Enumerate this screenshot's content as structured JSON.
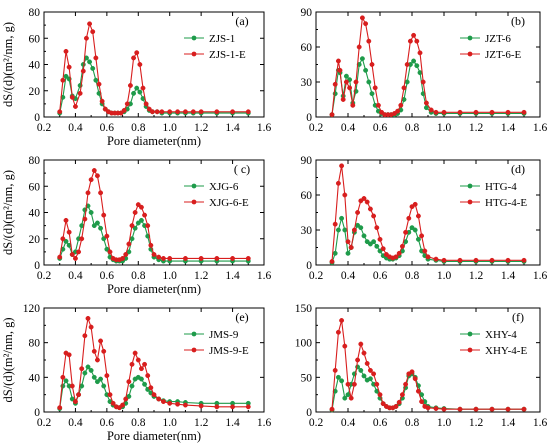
{
  "colors": {
    "base": "#1e9b4a",
    "extracted": "#d81e1e",
    "axis": "#000000"
  },
  "chart_data": [
    {
      "type": "line",
      "panel": "(a)",
      "xlabel": "Pore diameter(nm)",
      "ylabel": "dS/(d)(m²/nm, g)",
      "xlim": [
        0.2,
        1.6
      ],
      "ylim": [
        0,
        80
      ],
      "yticks": [
        0,
        20,
        40,
        60,
        80
      ],
      "xticks": [
        0.2,
        0.4,
        0.6,
        0.8,
        1.0,
        1.2,
        1.4,
        1.6
      ],
      "legend_position": "top-right",
      "series": [
        {
          "name": "ZJS-1",
          "x": [
            0.3,
            0.32,
            0.34,
            0.36,
            0.38,
            0.4,
            0.43,
            0.45,
            0.47,
            0.49,
            0.51,
            0.53,
            0.55,
            0.57,
            0.59,
            0.61,
            0.63,
            0.65,
            0.67,
            0.69,
            0.71,
            0.73,
            0.75,
            0.77,
            0.79,
            0.81,
            0.83,
            0.85,
            0.87,
            0.89,
            0.92,
            0.95,
            1.0,
            1.05,
            1.1,
            1.15,
            1.2,
            1.3,
            1.4,
            1.5
          ],
          "y": [
            3,
            15,
            31,
            29,
            16,
            14,
            24,
            40,
            45,
            42,
            37,
            28,
            18,
            10,
            6,
            4,
            3,
            3,
            3,
            3,
            4,
            6,
            10,
            18,
            22,
            19,
            14,
            8,
            5,
            4,
            4,
            3,
            3,
            3,
            3,
            3,
            3,
            3,
            3,
            3
          ]
        },
        {
          "name": "ZJS-1-E",
          "x": [
            0.3,
            0.32,
            0.34,
            0.36,
            0.38,
            0.4,
            0.43,
            0.45,
            0.47,
            0.49,
            0.51,
            0.53,
            0.55,
            0.57,
            0.59,
            0.61,
            0.63,
            0.65,
            0.67,
            0.69,
            0.71,
            0.73,
            0.75,
            0.77,
            0.79,
            0.81,
            0.83,
            0.85,
            0.87,
            0.89,
            0.92,
            0.95,
            1.0,
            1.05,
            1.1,
            1.15,
            1.2,
            1.3,
            1.4,
            1.5
          ],
          "y": [
            4,
            28,
            50,
            38,
            15,
            8,
            18,
            35,
            60,
            71,
            65,
            45,
            25,
            12,
            6,
            4,
            3,
            3,
            3,
            3,
            5,
            10,
            24,
            45,
            49,
            40,
            22,
            10,
            6,
            4,
            4,
            4,
            4,
            4,
            4,
            4,
            4,
            4,
            4,
            4
          ]
        }
      ]
    },
    {
      "type": "line",
      "panel": "(b)",
      "xlabel": "",
      "ylabel": "",
      "xlim": [
        0.2,
        1.6
      ],
      "ylim": [
        0,
        90
      ],
      "yticks": [
        0,
        30,
        60,
        90
      ],
      "xticks": [
        0.2,
        0.4,
        0.6,
        0.8,
        1.0,
        1.2,
        1.4,
        1.6
      ],
      "legend_position": "top-right",
      "series": [
        {
          "name": "JZT-6",
          "x": [
            0.3,
            0.32,
            0.34,
            0.35,
            0.37,
            0.39,
            0.41,
            0.43,
            0.45,
            0.47,
            0.49,
            0.51,
            0.53,
            0.55,
            0.57,
            0.59,
            0.61,
            0.63,
            0.65,
            0.67,
            0.69,
            0.71,
            0.73,
            0.75,
            0.77,
            0.79,
            0.81,
            0.83,
            0.85,
            0.87,
            0.89,
            0.92,
            0.95,
            1.0,
            1.1,
            1.2,
            1.3,
            1.4,
            1.5
          ],
          "y": [
            2,
            20,
            40,
            38,
            18,
            35,
            32,
            12,
            22,
            45,
            50,
            40,
            30,
            20,
            10,
            5,
            3,
            2,
            2,
            2,
            2,
            3,
            6,
            15,
            30,
            45,
            48,
            44,
            38,
            20,
            8,
            4,
            3,
            3,
            3,
            3,
            3,
            3,
            3
          ]
        },
        {
          "name": "JZT-6-E",
          "x": [
            0.3,
            0.32,
            0.34,
            0.35,
            0.37,
            0.39,
            0.41,
            0.43,
            0.45,
            0.47,
            0.49,
            0.51,
            0.53,
            0.55,
            0.57,
            0.59,
            0.61,
            0.63,
            0.65,
            0.67,
            0.69,
            0.71,
            0.73,
            0.75,
            0.77,
            0.79,
            0.81,
            0.83,
            0.85,
            0.87,
            0.89,
            0.92,
            0.95,
            1.0,
            1.1,
            1.2,
            1.3,
            1.4,
            1.5
          ],
          "y": [
            2,
            28,
            48,
            40,
            15,
            30,
            25,
            10,
            30,
            60,
            85,
            80,
            65,
            45,
            25,
            10,
            4,
            2,
            2,
            2,
            3,
            5,
            10,
            25,
            45,
            65,
            70,
            65,
            55,
            30,
            12,
            6,
            4,
            4,
            4,
            4,
            4,
            4,
            4
          ]
        }
      ]
    },
    {
      "type": "line",
      "panel": "( c)",
      "xlabel": "Pore diameter(nm)",
      "ylabel": "dS/(d)(m²/nm, g)",
      "xlim": [
        0.2,
        1.6
      ],
      "ylim": [
        0,
        80
      ],
      "yticks": [
        0,
        20,
        40,
        60,
        80
      ],
      "xticks": [
        0.2,
        0.4,
        0.6,
        0.8,
        1.0,
        1.2,
        1.4,
        1.6
      ],
      "legend_position": "top-right",
      "series": [
        {
          "name": "XJG-6",
          "x": [
            0.3,
            0.32,
            0.34,
            0.36,
            0.38,
            0.4,
            0.42,
            0.44,
            0.46,
            0.48,
            0.5,
            0.52,
            0.54,
            0.56,
            0.58,
            0.6,
            0.62,
            0.64,
            0.66,
            0.68,
            0.7,
            0.72,
            0.74,
            0.76,
            0.78,
            0.8,
            0.82,
            0.84,
            0.86,
            0.88,
            0.9,
            0.93,
            0.96,
            1.0,
            1.1,
            1.2,
            1.3,
            1.4,
            1.5
          ],
          "y": [
            5,
            12,
            18,
            15,
            8,
            10,
            20,
            30,
            42,
            45,
            40,
            30,
            32,
            28,
            20,
            12,
            6,
            4,
            3,
            3,
            3,
            5,
            10,
            20,
            28,
            32,
            34,
            30,
            22,
            12,
            6,
            4,
            3,
            3,
            3,
            3,
            3,
            3,
            3
          ]
        },
        {
          "name": "XJG-6-E",
          "x": [
            0.3,
            0.32,
            0.34,
            0.36,
            0.38,
            0.4,
            0.42,
            0.44,
            0.46,
            0.48,
            0.5,
            0.52,
            0.54,
            0.56,
            0.58,
            0.6,
            0.62,
            0.64,
            0.66,
            0.68,
            0.7,
            0.72,
            0.74,
            0.76,
            0.78,
            0.8,
            0.82,
            0.84,
            0.86,
            0.88,
            0.9,
            0.93,
            0.96,
            1.0,
            1.1,
            1.2,
            1.3,
            1.4,
            1.5
          ],
          "y": [
            6,
            20,
            34,
            25,
            8,
            5,
            10,
            20,
            35,
            55,
            65,
            72,
            68,
            55,
            38,
            22,
            10,
            5,
            4,
            4,
            5,
            8,
            16,
            30,
            40,
            46,
            44,
            38,
            30,
            15,
            8,
            6,
            5,
            5,
            5,
            5,
            5,
            5,
            5
          ]
        }
      ]
    },
    {
      "type": "line",
      "panel": "(d)",
      "xlabel": "",
      "ylabel": "",
      "xlim": [
        0.2,
        1.6
      ],
      "ylim": [
        0,
        90
      ],
      "yticks": [
        0,
        30,
        60,
        90
      ],
      "xticks": [
        0.2,
        0.4,
        0.6,
        0.8,
        1.0,
        1.2,
        1.4,
        1.6
      ],
      "legend_position": "top-right",
      "series": [
        {
          "name": "HTG-4",
          "x": [
            0.3,
            0.32,
            0.34,
            0.36,
            0.38,
            0.4,
            0.42,
            0.44,
            0.46,
            0.48,
            0.5,
            0.52,
            0.54,
            0.56,
            0.58,
            0.6,
            0.62,
            0.64,
            0.66,
            0.68,
            0.7,
            0.72,
            0.74,
            0.76,
            0.78,
            0.8,
            0.82,
            0.84,
            0.86,
            0.88,
            0.9,
            0.95,
            1.0,
            1.1,
            1.2,
            1.3,
            1.4,
            1.5
          ],
          "y": [
            2,
            10,
            30,
            40,
            30,
            10,
            15,
            28,
            34,
            32,
            25,
            20,
            18,
            20,
            16,
            12,
            8,
            6,
            5,
            5,
            6,
            8,
            12,
            20,
            28,
            32,
            30,
            22,
            12,
            8,
            5,
            4,
            3,
            3,
            3,
            3,
            3,
            3
          ]
        },
        {
          "name": "HTG-4-E",
          "x": [
            0.3,
            0.32,
            0.34,
            0.36,
            0.38,
            0.4,
            0.42,
            0.44,
            0.46,
            0.48,
            0.5,
            0.52,
            0.54,
            0.56,
            0.58,
            0.6,
            0.62,
            0.64,
            0.66,
            0.68,
            0.7,
            0.72,
            0.74,
            0.76,
            0.78,
            0.8,
            0.82,
            0.84,
            0.86,
            0.88,
            0.9,
            0.95,
            1.0,
            1.1,
            1.2,
            1.3,
            1.4,
            1.5
          ],
          "y": [
            3,
            35,
            70,
            85,
            60,
            20,
            15,
            30,
            45,
            55,
            57,
            54,
            48,
            42,
            32,
            22,
            14,
            9,
            7,
            6,
            7,
            10,
            16,
            28,
            40,
            50,
            52,
            42,
            25,
            12,
            7,
            5,
            4,
            4,
            4,
            4,
            4,
            4
          ]
        }
      ]
    },
    {
      "type": "line",
      "panel": "(e)",
      "xlabel": "Pore diameter(nm)",
      "ylabel": "dS/(d)(m²/nm, g)",
      "xlim": [
        0.2,
        1.6
      ],
      "ylim": [
        0,
        120
      ],
      "yticks": [
        0,
        40,
        80,
        120
      ],
      "xticks": [
        0.2,
        0.4,
        0.6,
        0.8,
        1.0,
        1.2,
        1.4,
        1.6
      ],
      "legend_position": "top-right",
      "series": [
        {
          "name": "JMS-9",
          "x": [
            0.3,
            0.32,
            0.34,
            0.36,
            0.38,
            0.4,
            0.42,
            0.44,
            0.46,
            0.48,
            0.5,
            0.52,
            0.54,
            0.56,
            0.58,
            0.6,
            0.62,
            0.64,
            0.66,
            0.68,
            0.7,
            0.72,
            0.74,
            0.76,
            0.78,
            0.8,
            0.82,
            0.84,
            0.86,
            0.88,
            0.9,
            0.93,
            0.96,
            1.0,
            1.05,
            1.1,
            1.2,
            1.3,
            1.4,
            1.5
          ],
          "y": [
            4,
            30,
            36,
            30,
            15,
            10,
            20,
            30,
            45,
            52,
            48,
            40,
            35,
            38,
            30,
            20,
            12,
            8,
            6,
            5,
            6,
            10,
            18,
            30,
            38,
            40,
            38,
            32,
            26,
            22,
            18,
            15,
            13,
            12,
            12,
            11,
            10,
            10,
            10,
            10
          ]
        },
        {
          "name": "JMS-9-E",
          "x": [
            0.3,
            0.32,
            0.34,
            0.36,
            0.38,
            0.4,
            0.42,
            0.44,
            0.46,
            0.48,
            0.5,
            0.52,
            0.54,
            0.56,
            0.58,
            0.6,
            0.62,
            0.64,
            0.66,
            0.68,
            0.7,
            0.72,
            0.74,
            0.76,
            0.78,
            0.8,
            0.82,
            0.84,
            0.86,
            0.88,
            0.9,
            0.93,
            0.96,
            1.0,
            1.05,
            1.1,
            1.2,
            1.3,
            1.4,
            1.5
          ],
          "y": [
            5,
            40,
            68,
            66,
            30,
            12,
            20,
            50,
            88,
            108,
            98,
            70,
            60,
            82,
            70,
            42,
            20,
            10,
            6,
            5,
            8,
            15,
            35,
            55,
            68,
            60,
            50,
            55,
            42,
            28,
            20,
            15,
            12,
            10,
            9,
            8,
            7,
            6,
            6,
            6
          ]
        }
      ]
    },
    {
      "type": "line",
      "panel": "(f)",
      "xlabel": "",
      "ylabel": "",
      "xlim": [
        0.2,
        1.6
      ],
      "ylim": [
        0,
        150
      ],
      "yticks": [
        0,
        50,
        100,
        150
      ],
      "xticks": [
        0.2,
        0.4,
        0.6,
        0.8,
        1.0,
        1.2,
        1.4,
        1.6
      ],
      "legend_position": "top-right",
      "series": [
        {
          "name": "XHY-4",
          "x": [
            0.3,
            0.32,
            0.34,
            0.36,
            0.38,
            0.4,
            0.42,
            0.44,
            0.46,
            0.48,
            0.5,
            0.52,
            0.54,
            0.56,
            0.58,
            0.6,
            0.62,
            0.64,
            0.66,
            0.68,
            0.7,
            0.72,
            0.74,
            0.76,
            0.78,
            0.8,
            0.82,
            0.84,
            0.86,
            0.88,
            0.9,
            0.95,
            1.0,
            1.1,
            1.2,
            1.3,
            1.4,
            1.5
          ],
          "y": [
            3,
            30,
            50,
            45,
            20,
            25,
            40,
            55,
            65,
            60,
            52,
            46,
            48,
            40,
            30,
            20,
            12,
            8,
            6,
            6,
            8,
            12,
            20,
            35,
            52,
            55,
            50,
            38,
            25,
            15,
            8,
            6,
            5,
            4,
            4,
            4,
            4,
            4
          ]
        },
        {
          "name": "XHY-4-E",
          "x": [
            0.3,
            0.32,
            0.34,
            0.36,
            0.38,
            0.4,
            0.42,
            0.44,
            0.46,
            0.48,
            0.5,
            0.52,
            0.54,
            0.56,
            0.58,
            0.6,
            0.62,
            0.64,
            0.66,
            0.68,
            0.7,
            0.72,
            0.74,
            0.76,
            0.78,
            0.8,
            0.82,
            0.84,
            0.86,
            0.88,
            0.9,
            0.95,
            1.0,
            1.1,
            1.2,
            1.3,
            1.4,
            1.5
          ],
          "y": [
            4,
            60,
            115,
            132,
            95,
            40,
            20,
            40,
            75,
            98,
            85,
            70,
            60,
            55,
            40,
            25,
            12,
            8,
            6,
            6,
            8,
            14,
            25,
            40,
            55,
            58,
            48,
            30,
            15,
            8,
            6,
            5,
            4,
            4,
            4,
            4,
            4,
            4
          ]
        }
      ]
    }
  ]
}
